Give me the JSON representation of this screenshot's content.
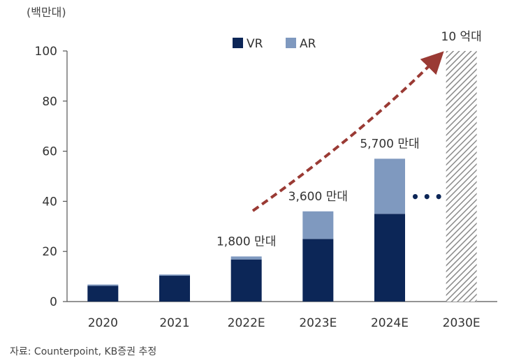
{
  "unit_label": "(백만대)",
  "source": "자료: Counterpoint, KB증권 추정",
  "colors": {
    "vr": "#0c2657",
    "ar": "#7f99bf",
    "arrow": "#9a3a34",
    "axis": "#555555",
    "hatch": "#8a8a8a"
  },
  "chart_data": {
    "type": "bar",
    "stacked": true,
    "categories": [
      "2020",
      "2021",
      "2022E",
      "2023E",
      "2024E",
      "2030E"
    ],
    "series": [
      {
        "name": "VR",
        "values": [
          6.3,
          10.3,
          16.8,
          25,
          35,
          null
        ]
      },
      {
        "name": "AR",
        "values": [
          0.5,
          0.5,
          1.2,
          11,
          22,
          null
        ]
      }
    ],
    "forecast_2030E": {
      "value": 1000,
      "label": "10 억대",
      "note": "hatched bar exceeds axis range"
    },
    "data_labels": [
      {
        "category": "2022E",
        "text": "1,800 만대"
      },
      {
        "category": "2023E",
        "text": "3,600 만대"
      },
      {
        "category": "2024E",
        "text": "5,700 만대"
      }
    ],
    "ellipsis": "•••",
    "yticks": [
      0,
      20,
      40,
      60,
      80,
      100
    ],
    "ylim": [
      0,
      100
    ],
    "legend_position": "top-center",
    "grid": false
  }
}
